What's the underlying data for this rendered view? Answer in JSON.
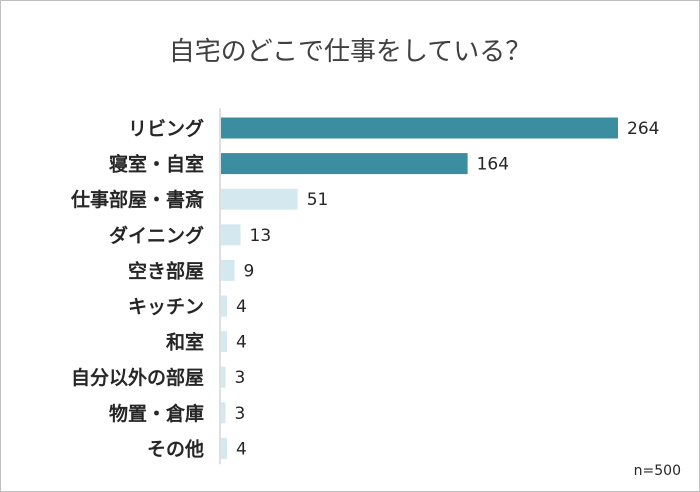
{
  "chart_data": {
    "type": "bar",
    "orientation": "horizontal",
    "title": "自宅のどこで仕事をしている？",
    "categories": [
      "リビング",
      "寝室・自室",
      "仕事部屋・書斎",
      "ダイニング",
      "空き部屋",
      "キッチン",
      "和室",
      "自分以外の部屋",
      "物置・倉庫",
      "その他"
    ],
    "values": [
      264,
      164,
      51,
      13,
      9,
      4,
      4,
      3,
      3,
      4
    ],
    "xlim": [
      0,
      264
    ],
    "grid": false,
    "legend": "none",
    "colors": {
      "highlight": "#3a8ea0",
      "normal": "#d4e9ef",
      "axis": "#bfbfbf"
    },
    "highlight_count": 2,
    "annotation": "n=500"
  }
}
